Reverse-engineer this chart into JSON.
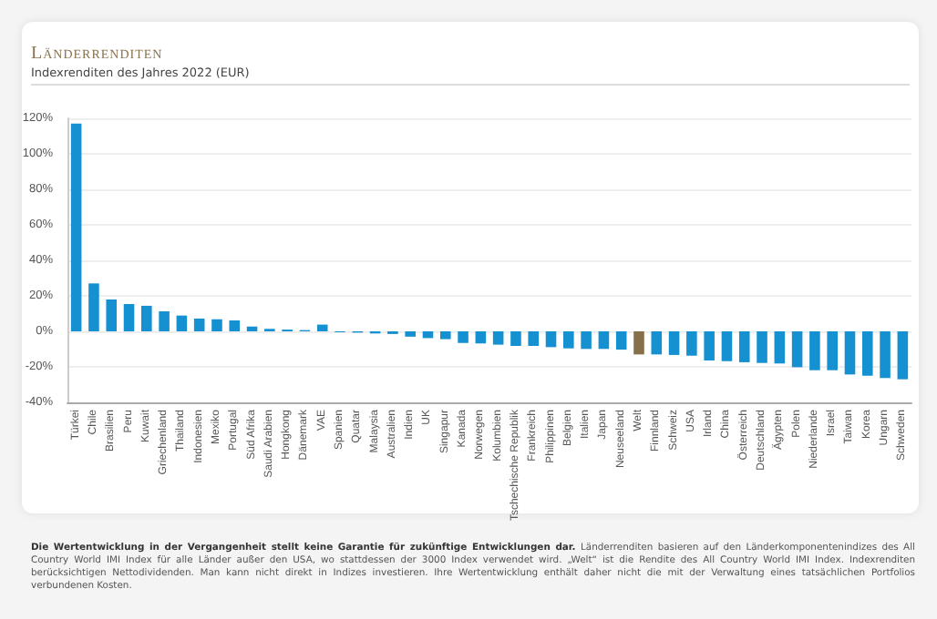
{
  "chart_data": {
    "type": "bar",
    "title": "Länderrenditen",
    "subtitle": "Indexrenditen des Jahres 2022 (EUR)",
    "categories": [
      "Türkei",
      "Chile",
      "Brasilien",
      "Peru",
      "Kuwait",
      "Griechenland",
      "Thailand",
      "Indonesien",
      "Mexiko",
      "Portugal",
      "Süd Afrika",
      "Saudi Arabien",
      "Hongkong",
      "Dänemark",
      "VAE",
      "Spanien",
      "Quatar",
      "Malaysia",
      "Australien",
      "Indien",
      "UK",
      "Singapur",
      "Kanada",
      "Norwegen",
      "Kolumbien",
      "Tschechische Republik",
      "Frankreich",
      "Philippinen",
      "Belgien",
      "Italien",
      "Japan",
      "Neuseeland",
      "Welt",
      "Finnland",
      "Schweiz",
      "USA",
      "Irland",
      "China",
      "Österreich",
      "Deutschland",
      "Ägypten",
      "Polen",
      "Niederlande",
      "Israel",
      "Taiwan",
      "Korea",
      "Ungarn",
      "Schweden"
    ],
    "values": [
      117,
      27,
      18,
      15.4,
      14.4,
      11.3,
      8.9,
      7.2,
      6.8,
      6.2,
      2.7,
      1.4,
      1,
      0.7,
      3.8,
      -0.5,
      -0.7,
      -1.2,
      -1.5,
      -3,
      -3.8,
      -4.4,
      -6.5,
      -6.8,
      -7.5,
      -8.2,
      -8.2,
      -8.9,
      -9.6,
      -9.9,
      -9.9,
      -10.3,
      -13,
      -13,
      -13.3,
      -13.7,
      -16.4,
      -16.8,
      -17.4,
      -17.8,
      -18.1,
      -20.2,
      -21.9,
      -21.9,
      -24.3,
      -25,
      -26.3,
      -27
    ],
    "colors": [
      "#1590d0",
      "#1590d0",
      "#1590d0",
      "#1590d0",
      "#1590d0",
      "#1590d0",
      "#1590d0",
      "#1590d0",
      "#1590d0",
      "#1590d0",
      "#1590d0",
      "#1590d0",
      "#1590d0",
      "#1590d0",
      "#1590d0",
      "#1590d0",
      "#1590d0",
      "#1590d0",
      "#1590d0",
      "#1590d0",
      "#1590d0",
      "#1590d0",
      "#1590d0",
      "#1590d0",
      "#1590d0",
      "#1590d0",
      "#1590d0",
      "#1590d0",
      "#1590d0",
      "#1590d0",
      "#1590d0",
      "#1590d0",
      "#86704a",
      "#1590d0",
      "#1590d0",
      "#1590d0",
      "#1590d0",
      "#1590d0",
      "#1590d0",
      "#1590d0",
      "#1590d0",
      "#1590d0",
      "#1590d0",
      "#1590d0",
      "#1590d0",
      "#1590d0",
      "#1590d0",
      "#1590d0"
    ],
    "ylim": [
      -40,
      120
    ],
    "yticks": [
      {
        "value": -40,
        "label": "-40%"
      },
      {
        "value": -20,
        "label": "-20%"
      },
      {
        "value": 0,
        "label": "0%"
      },
      {
        "value": 20,
        "label": "20%"
      },
      {
        "value": 40,
        "label": "40%"
      },
      {
        "value": 60,
        "label": "60%"
      },
      {
        "value": 80,
        "label": "80%"
      },
      {
        "value": 100,
        "label": "100%"
      },
      {
        "value": 120,
        "label": "120%"
      }
    ],
    "grid": "y",
    "annotations": [
      "Die Wertentwicklung in der Vergangenheit stellt keine Garantie für zukünftige Entwicklungen dar.",
      "Länderrenditen basieren auf den Länderkomponentenindizes des All Country World IMI Index für alle Länder außer den USA, wo stattdessen der 3000 Index verwendet wird. „Welt“ ist die Rendite des All Country World IMI Index. Indexrenditen berücksichtigen Nettodividenden. Man kann nicht direkt in Indizes investieren. Ihre Wertentwicklung enthält daher nicht die mit der Verwaltung eines tatsächlichen Portfolios verbundenen Kosten."
    ]
  }
}
